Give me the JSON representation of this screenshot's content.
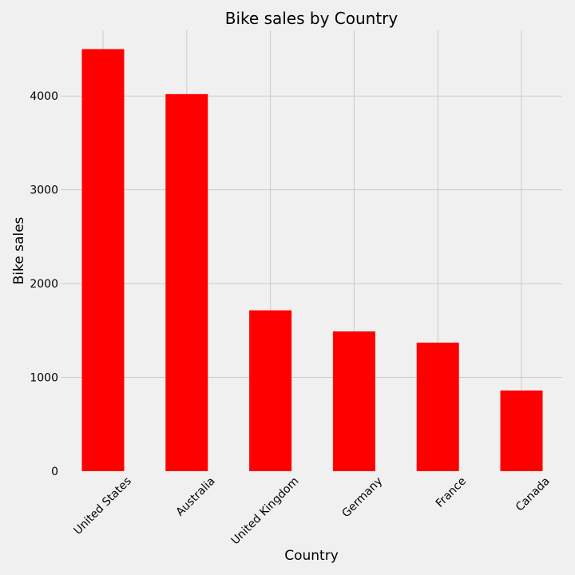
{
  "chart_data": {
    "type": "bar",
    "title": "Bike sales by Country",
    "xlabel": "Country",
    "ylabel": "Bike sales",
    "categories": [
      "United States",
      "Australia",
      "United Kingdom",
      "Germany",
      "France",
      "Canada"
    ],
    "values": [
      4500,
      4020,
      1715,
      1490,
      1370,
      860
    ],
    "ylim": [
      0,
      4700
    ],
    "yticks": [
      0,
      1000,
      2000,
      3000,
      4000
    ],
    "grid": true,
    "legend": "none",
    "bar_color": "#ff0000"
  }
}
